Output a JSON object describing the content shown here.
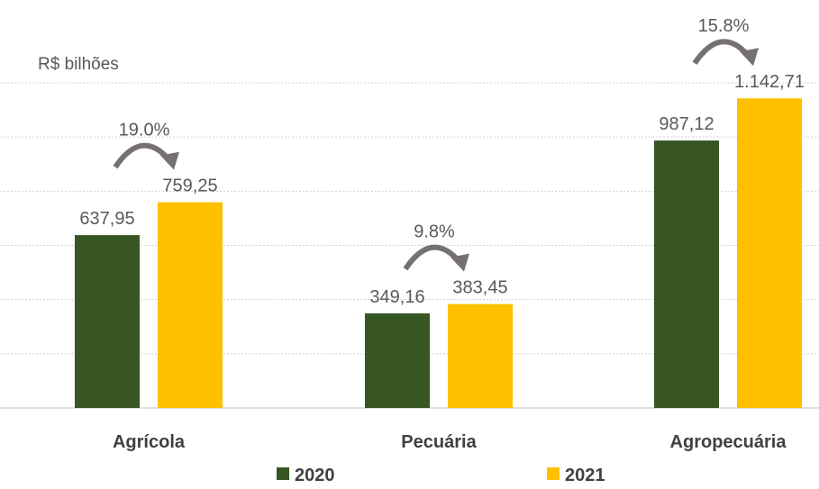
{
  "chart_data": {
    "type": "bar",
    "title": "",
    "ylabel": "R$ bilhões",
    "xlabel": "",
    "ylim": [
      0,
      1200
    ],
    "yticks": [
      0,
      200,
      400,
      600,
      800,
      1000,
      1200
    ],
    "grid": true,
    "legend_position": "bottom",
    "categories": [
      "Agrícola",
      "Pecuária",
      "Agropecuária"
    ],
    "series": [
      {
        "name": "2020",
        "color": "#375623",
        "values": [
          637.95,
          349.16,
          987.12
        ],
        "labels": [
          "637,95",
          "349,16",
          "987,12"
        ]
      },
      {
        "name": "2021",
        "color": "#FFC000",
        "values": [
          759.25,
          383.45,
          1142.71
        ],
        "labels": [
          "759,25",
          "383,45",
          "1.142,71"
        ]
      }
    ],
    "growth_annotations": [
      "19.0%",
      "9.8%",
      "15.8%"
    ],
    "arrow_color": "#767171"
  }
}
